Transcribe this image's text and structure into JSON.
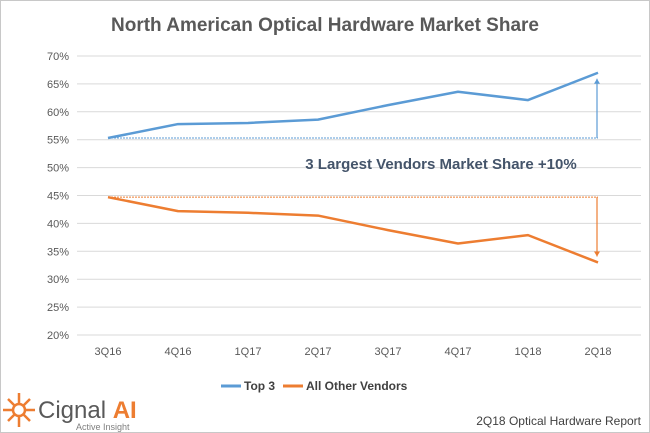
{
  "chart_data": {
    "type": "line",
    "title": "North American Optical Hardware Market Share",
    "categories": [
      "3Q16",
      "4Q16",
      "1Q17",
      "2Q17",
      "3Q17",
      "4Q17",
      "1Q18",
      "2Q18"
    ],
    "yticks": [
      "20%",
      "25%",
      "30%",
      "35%",
      "40%",
      "45%",
      "50%",
      "55%",
      "60%",
      "65%",
      "70%"
    ],
    "ylim": [
      20,
      70
    ],
    "grid": true,
    "legend_position": "bottom",
    "series": [
      {
        "name": "Top 3",
        "color": "#5b9bd5",
        "values": [
          55.3,
          57.8,
          58.0,
          58.6,
          61.2,
          63.6,
          62.1,
          67.0
        ]
      },
      {
        "name": "All Other Vendors",
        "color": "#ed7d31",
        "values": [
          44.7,
          42.2,
          41.9,
          41.4,
          38.8,
          36.4,
          37.9,
          33.0
        ]
      }
    ],
    "annotation": "3 Largest Vendors Market Share +10%"
  },
  "footer": {
    "logo_text": "Cignal AI",
    "logo_tagline": "Active Insight",
    "report": "2Q18 Optical Hardware Report"
  }
}
